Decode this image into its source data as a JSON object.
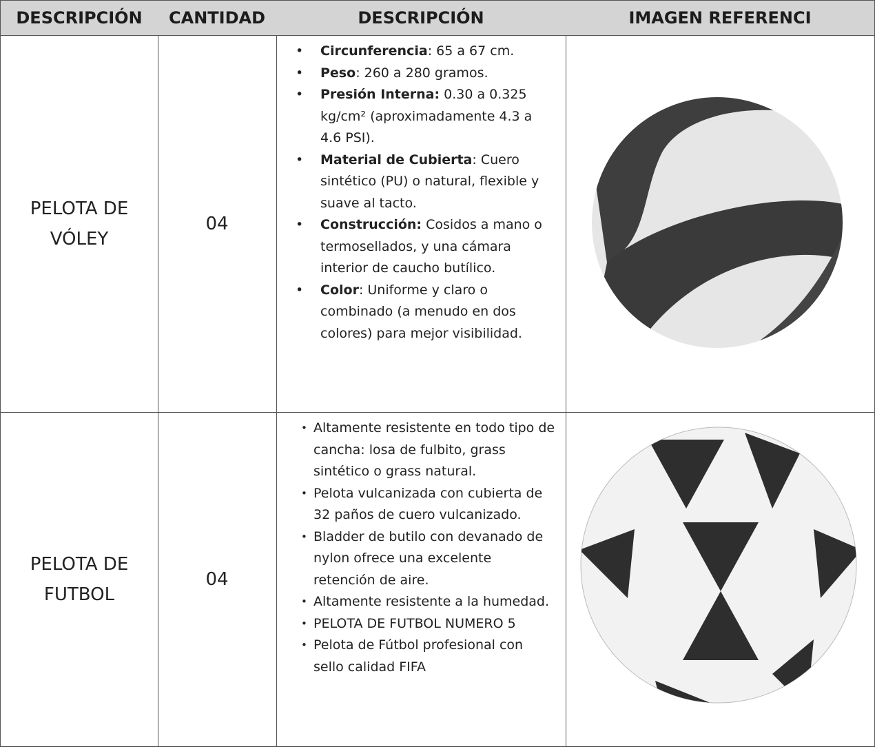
{
  "table": {
    "header": [
      "DESCRIPCIÓN",
      "CANTIDAD",
      "DESCRIPCIÓN",
      "IMAGEN REFERENCI"
    ],
    "rows": [
      {
        "name": [
          "PELOTA DE",
          "VÓLEY"
        ],
        "quantity": "04",
        "bullets": [
          {
            "label": "Circunferencia",
            "text": ": 65 a 67 cm."
          },
          {
            "label": "Peso",
            "text": ": 260 a 280 gramos."
          },
          {
            "label": "Presión Interna:",
            "text": " 0.30 a 0.325 kg/cm² (aproximadamente 4.3 a 4.6 PSI)."
          },
          {
            "label": "Material de Cubierta",
            "text": ": Cuero sintético (PU) o natural, flexible y suave al tacto."
          },
          {
            "label": "Construcción:",
            "text": " Cosidos a mano o termosellados, y una cámara interior de caucho butílico."
          },
          {
            "label": "Color",
            "text": ": Uniforme y claro o combinado (a menudo en dos colores) para mejor visibilidad."
          }
        ]
      },
      {
        "name": [
          "PELOTA DE",
          "FUTBOL"
        ],
        "quantity": "04",
        "bullets": [
          "Altamente resistente en todo tipo de cancha: losa de fulbito, grass sintético o grass natural.",
          "Pelota vulcanizada con cubierta de 32 paños de cuero vulcanizado.",
          "Bladder de butilo con devanado de nylon ofrece una excelente retención de aire.",
          "Altamente resistente a la humedad.",
          "PELOTA DE FUTBOL NUMERO 5",
          "Pelota de Fútbol profesional con sello calidad FIFA"
        ]
      }
    ]
  }
}
